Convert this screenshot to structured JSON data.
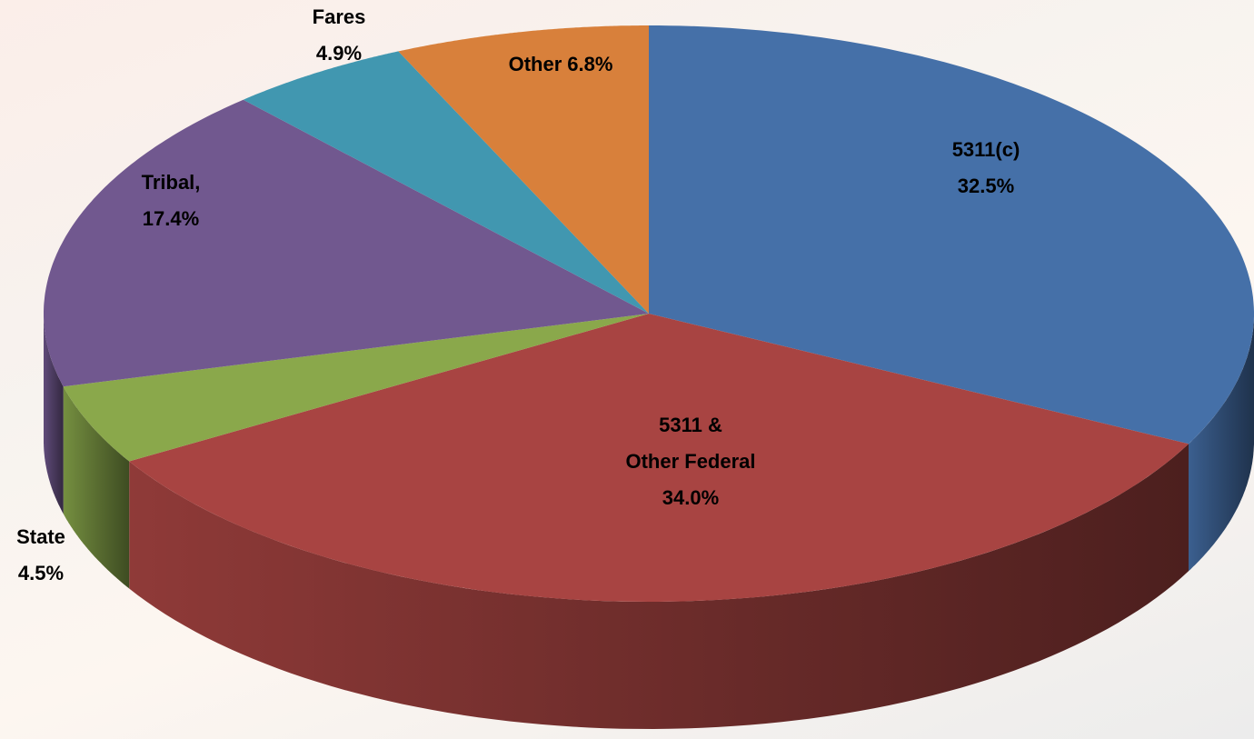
{
  "chart_data": {
    "type": "pie",
    "categories": [
      "5311(c)",
      "5311 &\nOther Federal",
      "State",
      "Tribal,",
      "Fares",
      "Other"
    ],
    "values": [
      32.5,
      34.0,
      4.5,
      17.4,
      4.9,
      6.8
    ],
    "value_labels": [
      "32.5%",
      "34.0%",
      "4.5%",
      "17.4%",
      "4.9%",
      "6.8%"
    ],
    "colors": [
      "#4570a8",
      "#a84442",
      "#8aa84b",
      "#71588f",
      "#4197b0",
      "#d8803b"
    ]
  }
}
